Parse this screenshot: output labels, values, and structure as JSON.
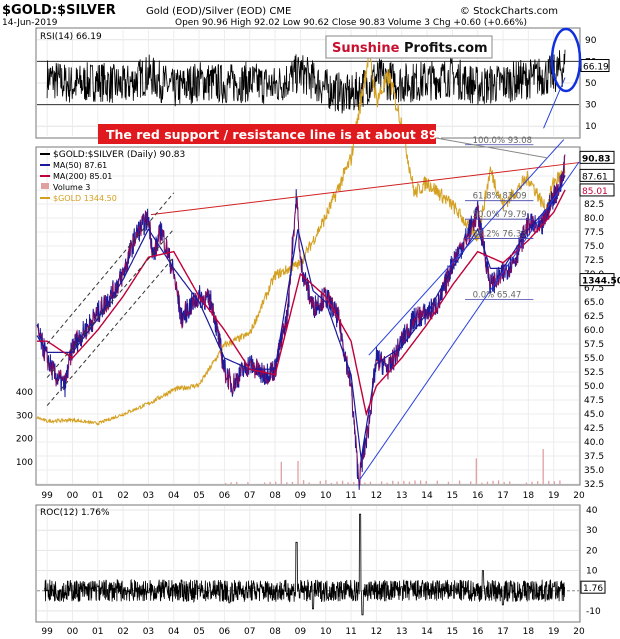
{
  "header": {
    "title": "$GOLD:$SILVER",
    "subtitle": "Gold (EOD)/Silver (EOD) CME",
    "date": "14-Jun-2019",
    "ohlc": "Open 90.96  High 92.02  Low 90.62  Close 90.83  Volume 3  Chg +0.60 (+0.66%)",
    "copyright": "© StockCharts.com"
  },
  "brand": {
    "sunshine": "Sunshine",
    "profits": "Profits.com"
  },
  "annotation": {
    "text": "The red support / resistance line is at about 89."
  },
  "colors": {
    "ratio": "#1a1a9a",
    "ma50": "#1a1a9a",
    "ma200": "#c0003a",
    "gold": "#d4a020",
    "trendline_red": "#d02020",
    "channel_blue": "#2840e0",
    "volume": "#e0a0a0",
    "ellipse": "#1030e0"
  },
  "chart_data": [
    {
      "type": "line",
      "panel": "RSI",
      "legend": "RSI(14) 66.19",
      "last_value_label": "66.19",
      "y_ticks": [
        "90",
        "70",
        "50",
        "30",
        "10"
      ],
      "ylim": [
        0,
        100
      ],
      "reference_lines": [
        30,
        70
      ],
      "x": [
        1999.0,
        2000.0,
        2001.0,
        2002.0,
        2003.0,
        2004.0,
        2005.0,
        2006.0,
        2007.0,
        2008.0,
        2009.0,
        2010.0,
        2011.0,
        2012.0,
        2013.0,
        2014.0,
        2015.0,
        2016.0,
        2017.0,
        2018.0,
        2019.0,
        2019.45
      ],
      "values": [
        55,
        48,
        52,
        47,
        58,
        44,
        52,
        49,
        51,
        47,
        60,
        45,
        38,
        55,
        50,
        52,
        56,
        47,
        50,
        54,
        58,
        66.19
      ]
    },
    {
      "type": "line",
      "panel": "main",
      "series": [
        {
          "name": "$GOLD:$SILVER (Daily) 90.83",
          "x": [
            1998.6,
            1999.0,
            1999.3,
            1999.7,
            2000.0,
            2000.5,
            2001.0,
            2001.5,
            2002.0,
            2002.5,
            2003.0,
            2003.2,
            2003.5,
            2004.0,
            2004.3,
            2004.6,
            2005.0,
            2005.5,
            2006.0,
            2006.3,
            2006.6,
            2007.0,
            2007.5,
            2008.0,
            2008.5,
            2008.7,
            2008.85,
            2009.0,
            2009.5,
            2010.0,
            2010.5,
            2011.0,
            2011.3,
            2011.7,
            2012.0,
            2012.5,
            2013.0,
            2013.5,
            2014.0,
            2014.5,
            2015.0,
            2015.5,
            2016.0,
            2016.2,
            2016.5,
            2017.0,
            2017.5,
            2018.0,
            2018.5,
            2019.0,
            2019.3,
            2019.45
          ],
          "values": [
            60.0,
            55.0,
            52.0,
            50.0,
            57.0,
            60.0,
            63.0,
            66.0,
            70.0,
            77.0,
            80.0,
            73.0,
            78.0,
            70.0,
            62.0,
            64.0,
            66.0,
            65.0,
            53.0,
            50.0,
            52.0,
            54.0,
            52.0,
            53.0,
            63.0,
            76.0,
            84.0,
            72.0,
            64.0,
            66.0,
            62.0,
            50.0,
            33.0,
            43.0,
            55.0,
            53.0,
            58.0,
            62.0,
            63.0,
            65.0,
            72.0,
            76.0,
            81.0,
            76.0,
            68.0,
            70.0,
            73.0,
            79.0,
            78.0,
            84.0,
            86.0,
            90.83
          ]
        },
        {
          "name": "MA(50) 87.61",
          "x": [
            1998.6,
            1999.0,
            2000.0,
            2001.0,
            2002.0,
            2003.0,
            2004.0,
            2005.0,
            2006.0,
            2007.0,
            2008.0,
            2008.9,
            2009.5,
            2010.0,
            2011.0,
            2011.4,
            2012.0,
            2013.0,
            2014.0,
            2015.0,
            2016.0,
            2016.5,
            2017.0,
            2018.0,
            2019.0,
            2019.45
          ],
          "values": [
            59.0,
            56.0,
            56.0,
            62.0,
            69.0,
            78.0,
            71.0,
            65.0,
            55.0,
            53.0,
            53.0,
            78.0,
            67.0,
            65.0,
            52.0,
            37.0,
            54.0,
            57.0,
            63.0,
            71.0,
            78.0,
            71.0,
            71.0,
            78.0,
            83.0,
            87.61
          ]
        },
        {
          "name": "MA(200) 85.01",
          "x": [
            1998.6,
            1999.0,
            2000.0,
            2001.0,
            2002.0,
            2003.0,
            2004.0,
            2005.0,
            2006.0,
            2007.0,
            2008.0,
            2009.0,
            2010.0,
            2011.0,
            2011.6,
            2012.0,
            2013.0,
            2014.0,
            2015.0,
            2016.0,
            2017.0,
            2018.0,
            2019.0,
            2019.45
          ],
          "values": [
            58.0,
            58.0,
            55.0,
            60.0,
            66.0,
            73.0,
            74.0,
            66.0,
            60.0,
            53.0,
            52.0,
            70.0,
            66.0,
            58.0,
            45.0,
            50.0,
            55.0,
            61.0,
            68.0,
            74.0,
            72.0,
            76.0,
            81.0,
            85.01
          ]
        },
        {
          "name": "$GOLD 1344.50",
          "x": [
            1998.6,
            1999.0,
            2000.0,
            2001.0,
            2002.0,
            2003.0,
            2004.0,
            2005.0,
            2006.0,
            2007.0,
            2008.0,
            2009.0,
            2010.0,
            2011.0,
            2011.7,
            2012.0,
            2012.5,
            2013.0,
            2013.5,
            2014.0,
            2015.0,
            2016.0,
            2016.5,
            2017.0,
            2018.0,
            2018.7,
            2019.0,
            2019.45
          ],
          "values": [
            290,
            275,
            280,
            265,
            305,
            350,
            410,
            430,
            600,
            650,
            900,
            950,
            1150,
            1400,
            1850,
            1650,
            1750,
            1550,
            1250,
            1300,
            1200,
            1060,
            1350,
            1200,
            1320,
            1180,
            1300,
            1344.5
          ]
        }
      ],
      "volume_label": "Volume 3",
      "last_value_labels": [
        "90.83",
        "87.61",
        "85.01",
        "1344.50"
      ],
      "y_ticks_right": [
        "87.5",
        "85.0",
        "82.5",
        "80.0",
        "77.5",
        "75.0",
        "72.5",
        "70.0",
        "67.5",
        "65.0",
        "62.5",
        "60.0",
        "57.5",
        "55.0",
        "52.5",
        "50.0",
        "47.5",
        "45.0",
        "42.5",
        "40.0",
        "37.5",
        "35.0",
        "32.5"
      ],
      "y_ticks_left_gold": [
        "400",
        "300",
        "200",
        "100"
      ],
      "ylim": [
        32.5,
        92.5
      ],
      "fib_levels": [
        {
          "label": "100.0% 93.08",
          "value": 93.08
        },
        {
          "label": "61.8% 83.09",
          "value": 83.09
        },
        {
          "label": "50.0% 79.79",
          "value": 79.79
        },
        {
          "label": "38.2% 76.33",
          "value": 76.33
        },
        {
          "label": "0.0% 65.47",
          "value": 65.47
        }
      ],
      "x_ticks": [
        "99",
        "00",
        "01",
        "02",
        "03",
        "04",
        "05",
        "06",
        "07",
        "08",
        "09",
        "10",
        "11",
        "12",
        "13",
        "14",
        "15",
        "16",
        "17",
        "18",
        "19",
        "20"
      ]
    },
    {
      "type": "line",
      "panel": "ROC",
      "legend": "ROC(12) 1.76%",
      "last_value_label": "1.76",
      "y_ticks": [
        "40",
        "30",
        "20",
        "10",
        "-10"
      ],
      "ylim": [
        -15,
        42
      ],
      "x": [
        1999.0,
        2001.0,
        2003.0,
        2005.0,
        2006.2,
        2008.85,
        2009.5,
        2011.35,
        2011.45,
        2013.0,
        2015.0,
        2016.2,
        2017.0,
        2019.0,
        2019.45
      ],
      "values": [
        0,
        2,
        -1,
        1,
        -6,
        24,
        -9,
        38,
        -12,
        2,
        0,
        10,
        -7,
        2,
        1.76
      ],
      "x_ticks": [
        "99",
        "00",
        "01",
        "02",
        "03",
        "04",
        "05",
        "06",
        "07",
        "08",
        "09",
        "10",
        "11",
        "12",
        "13",
        "14",
        "15",
        "16",
        "17",
        "18",
        "19",
        "20"
      ]
    }
  ]
}
